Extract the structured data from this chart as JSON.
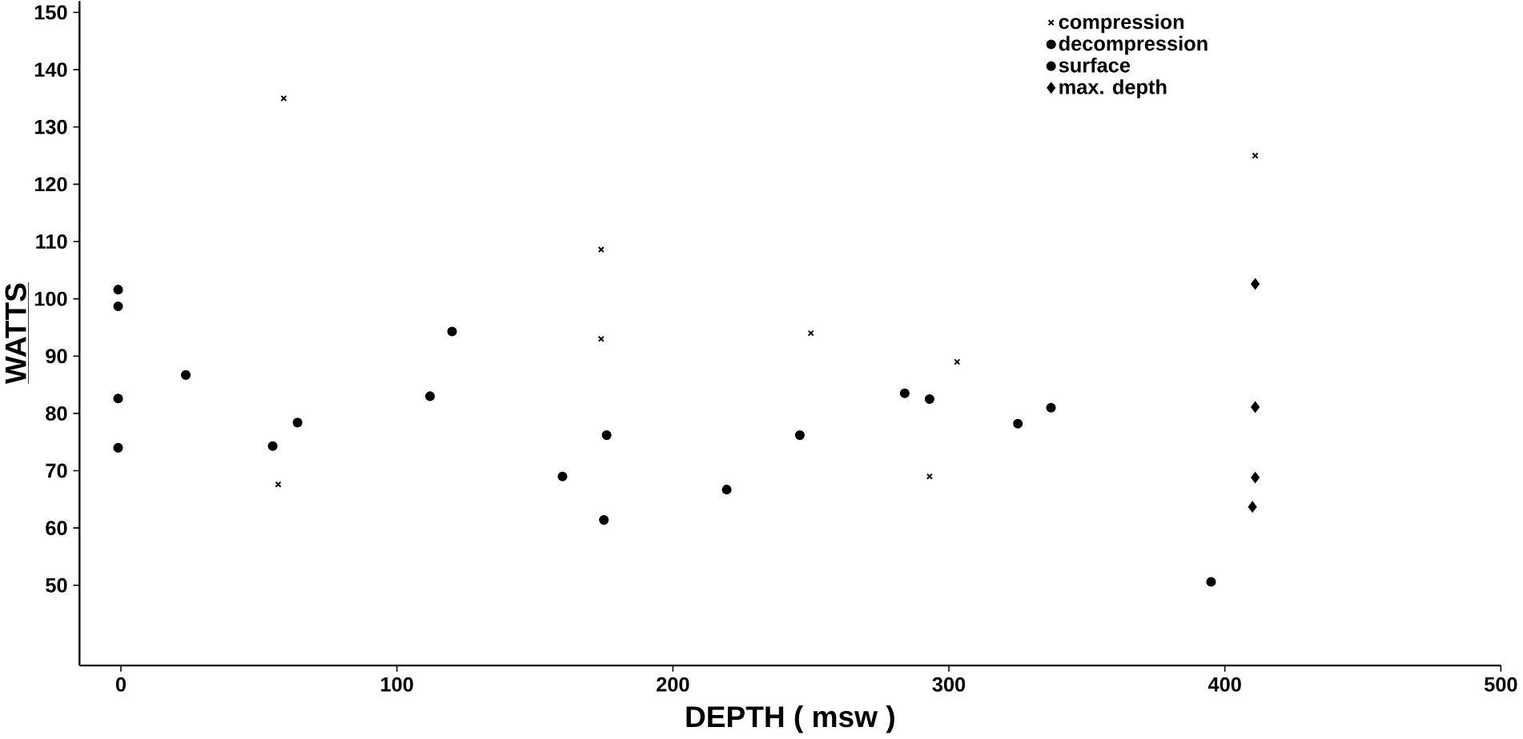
{
  "chart_data": {
    "type": "scatter",
    "xlabel": "DEPTH ( msw )",
    "ylabel": "WATTS",
    "xlim": [
      -15,
      500
    ],
    "ylim": [
      36,
      152
    ],
    "xticks": [
      0,
      100,
      200,
      300,
      400,
      500
    ],
    "yticks": [
      50,
      60,
      70,
      80,
      90,
      100,
      110,
      120,
      130,
      140,
      150
    ],
    "grid": false,
    "legend": "top right",
    "series": [
      {
        "name": "compression",
        "color": "#000000",
        "marker": "cross",
        "x": [
          59,
          57,
          174,
          174,
          250,
          293,
          303,
          411
        ],
        "values": [
          135,
          67.6,
          108.6,
          93,
          94,
          69,
          89,
          125
        ]
      },
      {
        "name": "decompression",
        "color": "#000000",
        "marker": "circle",
        "x": [
          395
        ],
        "values": [
          50.6
        ]
      },
      {
        "name": "surface",
        "color": "#000000",
        "marker": "circle",
        "x": [
          -1,
          -1,
          -1,
          -1,
          23.5,
          55,
          64,
          112,
          120,
          160,
          176,
          175,
          219.5,
          246,
          284,
          293,
          325,
          337
        ],
        "values": [
          101.6,
          98.7,
          82.6,
          74,
          86.7,
          74.3,
          78.4,
          83,
          94.3,
          69,
          76.2,
          61.4,
          66.7,
          76.2,
          83.5,
          82.5,
          78.2,
          81
        ]
      },
      {
        "name": "max. depth",
        "color": "#000000",
        "marker": "diamond",
        "x": [
          411,
          411,
          411,
          410
        ],
        "values": [
          102.6,
          81.1,
          68.8,
          63.7
        ]
      }
    ]
  }
}
